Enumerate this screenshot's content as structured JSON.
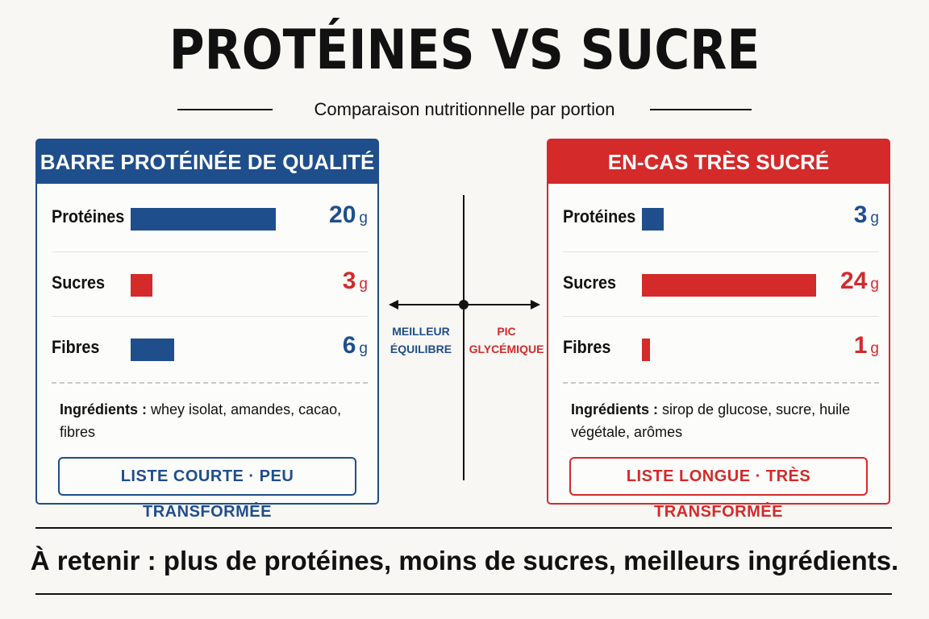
{
  "title": "PROTÉINES VS SUCRE",
  "subtitle": "Comparaison nutritionnelle par portion",
  "colors": {
    "blue": "#1f4e8c",
    "red": "#d42a2a"
  },
  "left_card": {
    "header": "BARRE PROTÉINÉE DE QUALITÉ",
    "rows": [
      {
        "label": "Protéines",
        "value": "20",
        "unit": "g",
        "amount": 20,
        "color": "blue"
      },
      {
        "label": "Sucres",
        "value": "3",
        "unit": "g",
        "amount": 3,
        "color": "red"
      },
      {
        "label": "Fibres",
        "value": "6",
        "unit": "g",
        "amount": 6,
        "color": "blue"
      }
    ],
    "ingredients_label": "Ingrédients :",
    "ingredients_text": "whey isolat, amandes, cacao, fibres",
    "tag": "LISTE COURTE · PEU TRANSFORMÉE"
  },
  "right_card": {
    "header": "EN-CAS TRÈS SUCRÉ",
    "rows": [
      {
        "label": "Protéines",
        "value": "3",
        "unit": "g",
        "amount": 3,
        "color": "blue"
      },
      {
        "label": "Sucres",
        "value": "24",
        "unit": "g",
        "amount": 24,
        "color": "red"
      },
      {
        "label": "Fibres",
        "value": "1",
        "unit": "g",
        "amount": 1,
        "color": "red"
      }
    ],
    "ingredients_label": "Ingrédients :",
    "ingredients_text": "sirop de glucose, sucre, huile végétale, arômes",
    "tag": "LISTE LONGUE · TRÈS TRANSFORMÉE"
  },
  "middle": {
    "left_label_1": "MEILLEUR",
    "left_label_2": "ÉQUILIBRE",
    "right_label_1": "PIC",
    "right_label_2": "GLYCÉMIQUE"
  },
  "takeaway": "À retenir : plus de protéines, moins de sucres, meilleurs ingrédients."
}
